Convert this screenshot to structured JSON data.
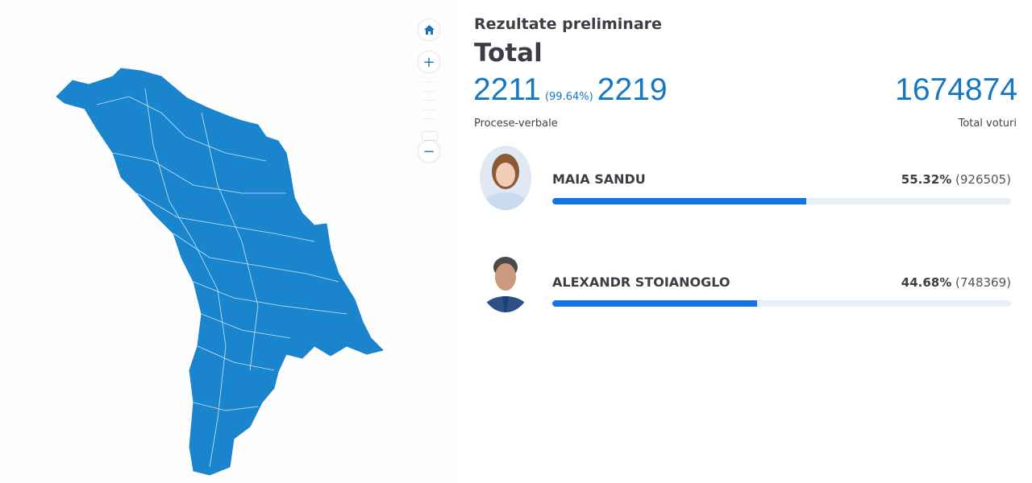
{
  "header": {
    "subtitle": "Rezultate preliminare",
    "title": "Total"
  },
  "stats": {
    "processed": "2211",
    "processed_pct": "(99.64%)",
    "total_protocols": "2219",
    "protocols_label": "Procese-verbale",
    "total_votes": "1674874",
    "votes_label": "Total voturi"
  },
  "map_controls": {
    "home": "home-icon",
    "zoom_in": "+",
    "zoom_out": "−"
  },
  "candidates": [
    {
      "name": "MAIA SANDU",
      "percent": "55.32%",
      "votes": "(926505)",
      "share": 55.32
    },
    {
      "name": "ALEXANDR STOIANOGLO",
      "percent": "44.68%",
      "votes": "(748369)",
      "share": 44.68
    }
  ],
  "colors": {
    "map_fill": "#1a84cc",
    "accent": "#1478c2",
    "bar": "#1473e6",
    "track": "#e8eff7"
  }
}
